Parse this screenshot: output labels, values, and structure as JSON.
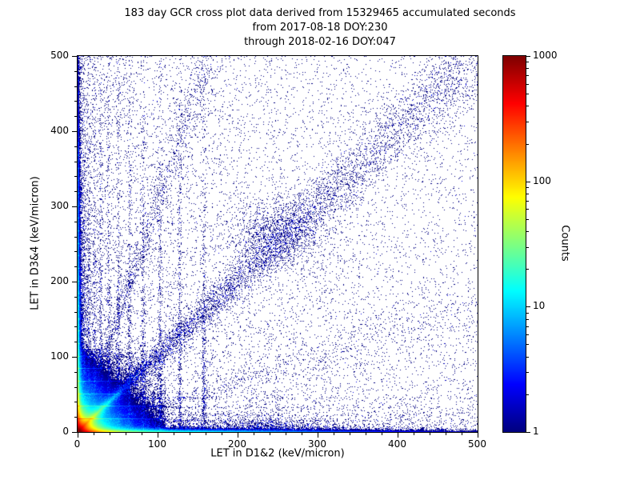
{
  "chart_data": {
    "type": "heatmap",
    "title_lines": [
      "183 day GCR cross plot data derived from 15329465 accumulated seconds",
      "from 2017-08-18 DOY:230",
      "through 2018-02-16 DOY:047"
    ],
    "xlabel": "LET in D1&2 (keV/micron)",
    "ylabel": "LET in D3&4 (keV/micron)",
    "xlim": [
      0,
      500
    ],
    "ylim": [
      0,
      500
    ],
    "xticks": [
      0,
      100,
      200,
      300,
      400,
      500
    ],
    "yticks": [
      0,
      100,
      200,
      300,
      400,
      500
    ],
    "minor_tick_step": 20,
    "grid": false,
    "colorbar": {
      "label": "Counts",
      "scale": "log",
      "range": [
        1,
        1000
      ],
      "ticks": [
        1000,
        100,
        10,
        1
      ],
      "colormap": "jet",
      "color_low": "#000080",
      "color_high": "#800000"
    },
    "seed": 42,
    "features": [
      {
        "kind": "uniform",
        "n": 5200
      },
      {
        "kind": "exp_x",
        "n": 2600,
        "scale": 150
      },
      {
        "kind": "exp_y",
        "n": 2200,
        "scale": 150
      },
      {
        "kind": "diagonal",
        "n": 6500,
        "pow": 1.4,
        "spread0": 1.5,
        "spread_grow": 0.045
      },
      {
        "kind": "ray",
        "n": 1400,
        "slope": 3.0,
        "xmax": 170,
        "pow": 1.3,
        "spread0": 1.5,
        "spread_grow": 0.05
      },
      {
        "kind": "ray",
        "n": 700,
        "slope": 0.33,
        "xmax": 500,
        "pow": 1.3,
        "spread0": 1.5,
        "spread_grow": 0.03
      },
      {
        "kind": "blob",
        "n": 1200,
        "cx": 250,
        "cy": 263,
        "sx": 30,
        "sy": 24
      },
      {
        "kind": "blob",
        "n": 450,
        "cx": 238,
        "cy": 8,
        "sx": 34,
        "sy": 6
      },
      {
        "kind": "stripes",
        "xs": [
          3,
          8,
          14,
          21,
          29,
          39,
          51,
          65,
          82,
          103,
          128,
          158
        ],
        "n_each": 420,
        "yscale": 160,
        "jitter": 1.3,
        "tail": 0.18
      },
      {
        "kind": "hstripes",
        "ys": [
          14,
          22,
          32,
          44
        ],
        "n_each": 240,
        "xscale": 120,
        "jitter": 1.2,
        "tail": 0.15
      },
      {
        "kind": "band_bottom",
        "n": 3200,
        "xscale": 170,
        "yscale": 6
      },
      {
        "kind": "band_left",
        "n": 2800,
        "yscale": 170,
        "xscale": 6
      }
    ],
    "core_field": {
      "extent": 110,
      "terms": [
        {
          "type": "radial",
          "a": 900,
          "s": 7.5
        },
        {
          "type": "diag",
          "a": 250,
          "s": 22,
          "w": 5
        },
        {
          "type": "edge_x",
          "a": 300,
          "s": 18,
          "p": 2.2
        },
        {
          "type": "edge_y",
          "a": 300,
          "s": 18,
          "p": 2.2
        },
        {
          "type": "radial",
          "a": 40,
          "s": 30
        }
      ]
    },
    "edge_glow": {
      "a": 35,
      "perp": 1.5,
      "along": 150,
      "extent": 12
    }
  }
}
